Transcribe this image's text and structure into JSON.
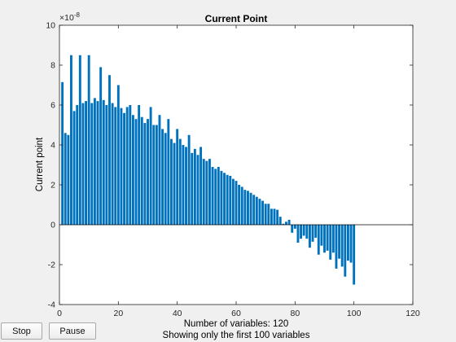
{
  "chart_data": {
    "type": "bar",
    "title": "Current Point",
    "ylabel": "Current point",
    "xlabel_lines": [
      "Number of variables: 120",
      "Showing only the first 100 variables"
    ],
    "exponent_label": "×10",
    "exponent_power": "-8",
    "xlim": [
      0,
      120
    ],
    "ylim": [
      -4,
      10
    ],
    "x_ticks": [
      0,
      20,
      40,
      60,
      80,
      100,
      120
    ],
    "y_ticks": [
      -4,
      -2,
      0,
      2,
      4,
      6,
      8,
      10
    ],
    "bar_color": "#0072bd",
    "x": [
      1,
      2,
      3,
      4,
      5,
      6,
      7,
      8,
      9,
      10,
      11,
      12,
      13,
      14,
      15,
      16,
      17,
      18,
      19,
      20,
      21,
      22,
      23,
      24,
      25,
      26,
      27,
      28,
      29,
      30,
      31,
      32,
      33,
      34,
      35,
      36,
      37,
      38,
      39,
      40,
      41,
      42,
      43,
      44,
      45,
      46,
      47,
      48,
      49,
      50,
      51,
      52,
      53,
      54,
      55,
      56,
      57,
      58,
      59,
      60,
      61,
      62,
      63,
      64,
      65,
      66,
      67,
      68,
      69,
      70,
      71,
      72,
      73,
      74,
      75,
      76,
      77,
      78,
      79,
      80,
      81,
      82,
      83,
      84,
      85,
      86,
      87,
      88,
      89,
      90,
      91,
      92,
      93,
      94,
      95,
      96,
      97,
      98,
      99,
      100
    ],
    "values": [
      7.15,
      4.6,
      4.5,
      8.5,
      5.7,
      6.0,
      8.5,
      6.1,
      6.2,
      8.5,
      6.1,
      6.35,
      6.2,
      7.9,
      6.25,
      6.0,
      7.5,
      6.1,
      5.9,
      7.0,
      5.85,
      5.6,
      5.9,
      6.0,
      5.5,
      5.3,
      6.0,
      5.4,
      5.1,
      5.3,
      5.9,
      5.0,
      5.0,
      5.5,
      4.8,
      4.6,
      5.3,
      4.3,
      4.1,
      4.8,
      4.3,
      4.0,
      3.9,
      4.5,
      3.6,
      3.8,
      3.5,
      3.9,
      3.3,
      3.2,
      3.3,
      2.9,
      2.8,
      2.9,
      2.7,
      2.6,
      2.5,
      2.45,
      2.3,
      2.2,
      2.0,
      1.9,
      1.75,
      1.7,
      1.6,
      1.5,
      1.4,
      1.3,
      1.2,
      1.05,
      1.05,
      0.8,
      0.8,
      0.75,
      0.4,
      0.05,
      0.15,
      0.25,
      -0.4,
      -0.2,
      -0.9,
      -0.7,
      -0.55,
      -0.7,
      -1.15,
      -0.85,
      -0.65,
      -1.5,
      -1.05,
      -1.4,
      -1.3,
      -1.75,
      -1.4,
      -2.2,
      -1.7,
      -2.1,
      -2.6,
      -1.8,
      -1.9,
      -3.0
    ]
  },
  "controls": {
    "stop_label": "Stop",
    "pause_label": "Pause"
  }
}
